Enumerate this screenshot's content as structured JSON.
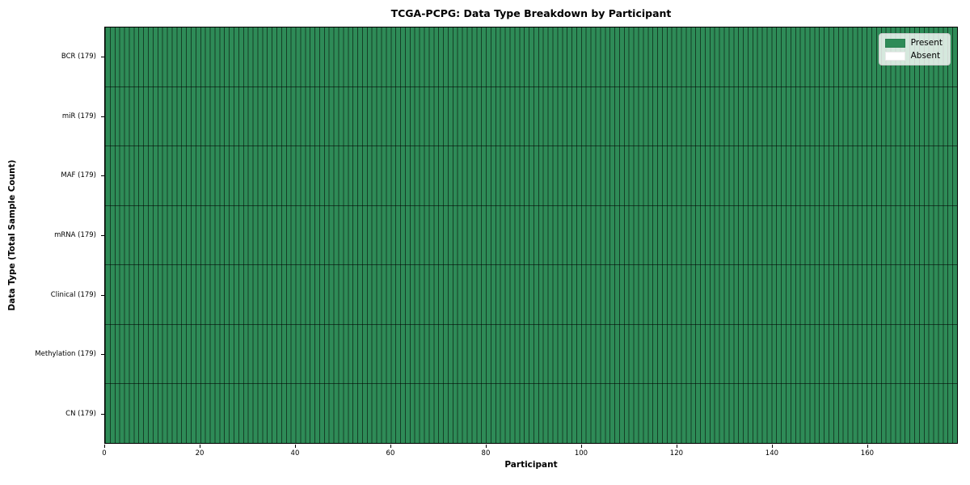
{
  "chart_data": {
    "type": "heatmap",
    "title": "TCGA-PCPG: Data Type Breakdown by Participant",
    "xlabel": "Participant",
    "ylabel": "Data Type (Total Sample Count)",
    "n_participants": 179,
    "x_range": [
      0,
      179
    ],
    "x_ticks": [
      0,
      20,
      40,
      60,
      80,
      100,
      120,
      140,
      160
    ],
    "rows": [
      {
        "label": "BCR (179)",
        "data_type": "BCR",
        "total_samples": 179,
        "present_count": 179,
        "absent_count": 0
      },
      {
        "label": "miR (179)",
        "data_type": "miR",
        "total_samples": 179,
        "present_count": 179,
        "absent_count": 0
      },
      {
        "label": "MAF (179)",
        "data_type": "MAF",
        "total_samples": 179,
        "present_count": 179,
        "absent_count": 0
      },
      {
        "label": "mRNA (179)",
        "data_type": "mRNA",
        "total_samples": 179,
        "present_count": 179,
        "absent_count": 0
      },
      {
        "label": "Clinical (179)",
        "data_type": "Clinical",
        "total_samples": 179,
        "present_count": 179,
        "absent_count": 0
      },
      {
        "label": "Methylation (179)",
        "data_type": "Methylation",
        "total_samples": 179,
        "present_count": 179,
        "absent_count": 0
      },
      {
        "label": "CN (179)",
        "data_type": "CN",
        "total_samples": 179,
        "present_count": 179,
        "absent_count": 0
      }
    ],
    "legend": {
      "position": "upper right",
      "items": [
        {
          "label": "Present",
          "color": "#2e8b57"
        },
        {
          "label": "Absent",
          "color": "#ffffff"
        }
      ]
    },
    "colors": {
      "present": "#2e8b57",
      "absent": "#ffffff",
      "cell_edge": "rgba(0,0,0,0.55)",
      "spine": "#000000",
      "background": "#ffffff"
    },
    "grid": "cell-edges",
    "all_cells_value": "Present"
  }
}
